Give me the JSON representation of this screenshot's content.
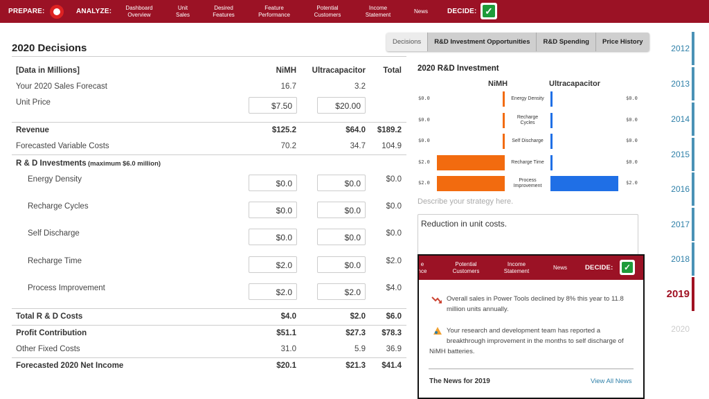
{
  "nav": {
    "prepare_label": "PREPARE:",
    "analyze_label": "ANALYZE:",
    "decide_label": "DECIDE:",
    "items": [
      {
        "line1": "Dashboard",
        "line2": "Overview"
      },
      {
        "line1": "Unit",
        "line2": "Sales"
      },
      {
        "line1": "Desired",
        "line2": "Features"
      },
      {
        "line1": "Feature",
        "line2": "Performance"
      },
      {
        "line1": "Potential",
        "line2": "Customers"
      },
      {
        "line1": "Income",
        "line2": "Statement"
      },
      {
        "line1": "News",
        "line2": ""
      }
    ]
  },
  "page": {
    "title": "2020 Decisions"
  },
  "tabs": [
    "Decisions",
    "R&D Investment Opportunities",
    "R&D Spending",
    "Price History"
  ],
  "table": {
    "header": {
      "label": "[Data in Millions]",
      "col1": "NiMH",
      "col2": "Ultracapacitor",
      "col3": "Total"
    },
    "sales_forecast": {
      "label": "Your 2020 Sales Forecast",
      "v1": "16.7",
      "v2": "3.2"
    },
    "unit_price": {
      "label": "Unit Price",
      "v1": "$7.50",
      "v2": "$20.00"
    },
    "revenue": {
      "label": "Revenue",
      "v1": "$125.2",
      "v2": "$64.0",
      "v3": "$189.2"
    },
    "variable_costs": {
      "label": "Forecasted Variable Costs",
      "v1": "70.2",
      "v2": "34.7",
      "v3": "104.9"
    },
    "rd_header": {
      "label": "R & D Investments",
      "note": "(maximum $6.0 million)"
    },
    "rd_rows": [
      {
        "label": "Energy Density",
        "v1": "$0.0",
        "v2": "$0.0",
        "v3": "$0.0"
      },
      {
        "label": "Recharge Cycles",
        "v1": "$0.0",
        "v2": "$0.0",
        "v3": "$0.0"
      },
      {
        "label": "Self Discharge",
        "v1": "$0.0",
        "v2": "$0.0",
        "v3": "$0.0"
      },
      {
        "label": "Recharge Time",
        "v1": "$2.0",
        "v2": "$0.0",
        "v3": "$2.0"
      },
      {
        "label": "Process Improvement",
        "v1": "$2.0",
        "v2": "$2.0",
        "v3": "$4.0"
      }
    ],
    "total_rd": {
      "label": "Total R & D Costs",
      "v1": "$4.0",
      "v2": "$2.0",
      "v3": "$6.0"
    },
    "profit": {
      "label": "Profit Contribution",
      "v1": "$51.1",
      "v2": "$27.3",
      "v3": "$78.3"
    },
    "fixed_costs": {
      "label": "Other Fixed Costs",
      "v1": "31.0",
      "v2": "5.9",
      "v3": "36.9"
    },
    "net_income": {
      "label": "Forecasted 2020 Net Income",
      "v1": "$20.1",
      "v2": "$21.3",
      "v3": "$41.4"
    }
  },
  "chart": {
    "title": "2020 R&D Investment",
    "series1": "NiMH",
    "series2": "Ultracapacitor",
    "nimh_color": "#f26b0f",
    "ultra_color": "#1f6fe6"
  },
  "chart_data": {
    "type": "bar",
    "orientation": "horizontal-diverging",
    "title": "2020 R&D Investment",
    "categories": [
      "Energy Density",
      "Recharge Cycles",
      "Self Discharge",
      "Recharge Time",
      "Process Improvement"
    ],
    "category_lines": [
      [
        "Energy Density"
      ],
      [
        "Recharge",
        "Cycles"
      ],
      [
        "Self Discharge"
      ],
      [
        "Recharge Time"
      ],
      [
        "Process",
        "Improvement"
      ]
    ],
    "series": [
      {
        "name": "NiMH",
        "values": [
          0.0,
          0.0,
          0.0,
          2.0,
          2.0
        ],
        "labels": [
          "$0.0",
          "$0.0",
          "$0.0",
          "$2.0",
          "$2.0"
        ]
      },
      {
        "name": "Ultracapacitor",
        "values": [
          0.0,
          0.0,
          0.0,
          0.0,
          2.0
        ],
        "labels": [
          "$0.0",
          "$0.0",
          "$0.0",
          "$0.0",
          "$2.0"
        ]
      }
    ],
    "xlim": [
      0,
      2.0
    ]
  },
  "strategy": {
    "placeholder": "Describe your strategy here.",
    "text": "Reduction in unit costs."
  },
  "years": [
    "2012",
    "2013",
    "2014",
    "2015",
    "2016",
    "2017",
    "2018",
    "2019",
    "2020"
  ],
  "news_popup": {
    "nav_items": [
      {
        "line1": "e",
        "line2": "nce"
      },
      {
        "line1": "Potential",
        "line2": "Customers"
      },
      {
        "line1": "Income",
        "line2": "Statement"
      },
      {
        "line1": "News",
        "line2": ""
      }
    ],
    "decide_label": "DECIDE:",
    "items": [
      {
        "line1": "Overall sales in Power Tools declined by 8% this year to 11.8",
        "line2": "million units annually."
      },
      {
        "line1": "Your research and development team has reported a",
        "line2": "breakthrough improvement in the months to self discharge of",
        "line3": "NiMH batteries."
      }
    ],
    "footer_title": "The News for 2019",
    "view_all": "View All News"
  }
}
